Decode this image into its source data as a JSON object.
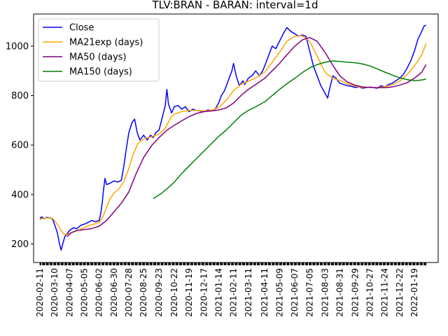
{
  "chart_data": {
    "type": "line",
    "title": "TLV:BRAN - BARAN: interval=1d",
    "xlabel": "",
    "ylabel": "",
    "ylim": [
      125,
      1130
    ],
    "yticks": [
      200,
      400,
      600,
      800,
      1000
    ],
    "xlim": [
      "2020-01-30",
      "2022-03-05"
    ],
    "xtick_labels": [
      "2020-02-11",
      "2020-03-10",
      "2020-04-07",
      "2020-05-05",
      "2020-06-02",
      "2020-06-30",
      "2020-07-28",
      "2020-08-25",
      "2020-09-23",
      "2020-10-22",
      "2020-11-19",
      "2020-12-17",
      "2021-01-14",
      "2021-02-11",
      "2021-03-11",
      "2021-04-11",
      "2021-05-09",
      "2021-06-07",
      "2021-07-05",
      "2021-08-03",
      "2021-08-31",
      "2021-09-29",
      "2021-10-27",
      "2021-11-24",
      "2021-12-22",
      "2022-01-19"
    ],
    "legend_position": "upper-left",
    "grid": false,
    "series": [
      {
        "name": "Close",
        "color": "#0000ff",
        "points": [
          [
            "2020-02-11",
            300
          ],
          [
            "2020-02-14",
            310
          ],
          [
            "2020-02-19",
            302
          ],
          [
            "2020-02-24",
            308
          ],
          [
            "2020-03-01",
            305
          ],
          [
            "2020-03-06",
            300
          ],
          [
            "2020-03-11",
            270
          ],
          [
            "2020-03-15",
            245
          ],
          [
            "2020-03-19",
            200
          ],
          [
            "2020-03-22",
            175
          ],
          [
            "2020-03-25",
            200
          ],
          [
            "2020-03-29",
            230
          ],
          [
            "2020-04-02",
            240
          ],
          [
            "2020-04-07",
            255
          ],
          [
            "2020-04-14",
            265
          ],
          [
            "2020-04-21",
            262
          ],
          [
            "2020-04-28",
            275
          ],
          [
            "2020-05-05",
            280
          ],
          [
            "2020-05-12",
            287
          ],
          [
            "2020-05-19",
            295
          ],
          [
            "2020-05-26",
            290
          ],
          [
            "2020-06-02",
            295
          ],
          [
            "2020-06-05",
            325
          ],
          [
            "2020-06-08",
            370
          ],
          [
            "2020-06-10",
            415
          ],
          [
            "2020-06-13",
            465
          ],
          [
            "2020-06-16",
            440
          ],
          [
            "2020-06-22",
            445
          ],
          [
            "2020-06-30",
            455
          ],
          [
            "2020-07-07",
            450
          ],
          [
            "2020-07-14",
            458
          ],
          [
            "2020-07-19",
            520
          ],
          [
            "2020-07-23",
            580
          ],
          [
            "2020-07-28",
            650
          ],
          [
            "2020-08-03",
            690
          ],
          [
            "2020-08-08",
            705
          ],
          [
            "2020-08-13",
            650
          ],
          [
            "2020-08-18",
            620
          ],
          [
            "2020-08-25",
            640
          ],
          [
            "2020-09-01",
            620
          ],
          [
            "2020-09-07",
            640
          ],
          [
            "2020-09-12",
            630
          ],
          [
            "2020-09-17",
            650
          ],
          [
            "2020-09-23",
            660
          ],
          [
            "2020-09-28",
            700
          ],
          [
            "2020-10-05",
            760
          ],
          [
            "2020-10-08",
            825
          ],
          [
            "2020-10-11",
            765
          ],
          [
            "2020-10-17",
            730
          ],
          [
            "2020-10-22",
            755
          ],
          [
            "2020-10-29",
            760
          ],
          [
            "2020-11-05",
            745
          ],
          [
            "2020-11-12",
            755
          ],
          [
            "2020-11-19",
            735
          ],
          [
            "2020-11-26",
            745
          ],
          [
            "2020-12-03",
            740
          ],
          [
            "2020-12-10",
            738
          ],
          [
            "2020-12-17",
            735
          ],
          [
            "2020-12-24",
            742
          ],
          [
            "2020-12-31",
            740
          ],
          [
            "2021-01-07",
            745
          ],
          [
            "2021-01-14",
            770
          ],
          [
            "2021-01-19",
            800
          ],
          [
            "2021-01-25",
            820
          ],
          [
            "2021-02-01",
            860
          ],
          [
            "2021-02-08",
            900
          ],
          [
            "2021-02-11",
            930
          ],
          [
            "2021-02-16",
            880
          ],
          [
            "2021-02-22",
            840
          ],
          [
            "2021-03-01",
            860
          ],
          [
            "2021-03-04",
            845
          ],
          [
            "2021-03-11",
            870
          ],
          [
            "2021-03-18",
            880
          ],
          [
            "2021-03-25",
            900
          ],
          [
            "2021-04-01",
            880
          ],
          [
            "2021-04-07",
            900
          ],
          [
            "2021-04-11",
            920
          ],
          [
            "2021-04-18",
            960
          ],
          [
            "2021-04-25",
            1000
          ],
          [
            "2021-05-02",
            990
          ],
          [
            "2021-05-09",
            1020
          ],
          [
            "2021-05-16",
            1050
          ],
          [
            "2021-05-23",
            1075
          ],
          [
            "2021-05-30",
            1060
          ],
          [
            "2021-06-07",
            1050
          ],
          [
            "2021-06-14",
            1040
          ],
          [
            "2021-06-21",
            1045
          ],
          [
            "2021-06-28",
            1040
          ],
          [
            "2021-07-05",
            980
          ],
          [
            "2021-07-12",
            920
          ],
          [
            "2021-07-19",
            880
          ],
          [
            "2021-07-26",
            840
          ],
          [
            "2021-08-03",
            810
          ],
          [
            "2021-08-08",
            790
          ],
          [
            "2021-08-12",
            830
          ],
          [
            "2021-08-18",
            880
          ],
          [
            "2021-08-24",
            870
          ],
          [
            "2021-08-31",
            850
          ],
          [
            "2021-09-07",
            845
          ],
          [
            "2021-09-14",
            840
          ],
          [
            "2021-09-21",
            838
          ],
          [
            "2021-09-29",
            833
          ],
          [
            "2021-10-06",
            835
          ],
          [
            "2021-10-13",
            830
          ],
          [
            "2021-10-20",
            832
          ],
          [
            "2021-10-27",
            835
          ],
          [
            "2021-11-03",
            832
          ],
          [
            "2021-11-10",
            830
          ],
          [
            "2021-11-17",
            840
          ],
          [
            "2021-11-24",
            835
          ],
          [
            "2021-12-01",
            845
          ],
          [
            "2021-12-08",
            850
          ],
          [
            "2021-12-15",
            860
          ],
          [
            "2021-12-22",
            870
          ],
          [
            "2021-12-29",
            885
          ],
          [
            "2022-01-05",
            910
          ],
          [
            "2022-01-12",
            940
          ],
          [
            "2022-01-19",
            980
          ],
          [
            "2022-01-26",
            1030
          ],
          [
            "2022-02-02",
            1060
          ],
          [
            "2022-02-06",
            1080
          ],
          [
            "2022-02-10",
            1085
          ]
        ]
      },
      {
        "name": "MA21exp (days)",
        "color": "#ffa500",
        "points": [
          [
            "2020-02-11",
            300
          ],
          [
            "2020-02-25",
            306
          ],
          [
            "2020-03-06",
            303
          ],
          [
            "2020-03-13",
            285
          ],
          [
            "2020-03-20",
            262
          ],
          [
            "2020-03-27",
            240
          ],
          [
            "2020-04-03",
            238
          ],
          [
            "2020-04-10",
            245
          ],
          [
            "2020-04-20",
            252
          ],
          [
            "2020-05-01",
            262
          ],
          [
            "2020-05-12",
            273
          ],
          [
            "2020-05-26",
            282
          ],
          [
            "2020-06-02",
            288
          ],
          [
            "2020-06-09",
            310
          ],
          [
            "2020-06-16",
            350
          ],
          [
            "2020-06-23",
            385
          ],
          [
            "2020-06-30",
            405
          ],
          [
            "2020-07-10",
            425
          ],
          [
            "2020-07-19",
            455
          ],
          [
            "2020-07-28",
            505
          ],
          [
            "2020-08-05",
            560
          ],
          [
            "2020-08-14",
            605
          ],
          [
            "2020-08-25",
            625
          ],
          [
            "2020-09-07",
            632
          ],
          [
            "2020-09-23",
            645
          ],
          [
            "2020-10-05",
            668
          ],
          [
            "2020-10-15",
            710
          ],
          [
            "2020-10-22",
            725
          ],
          [
            "2020-11-05",
            735
          ],
          [
            "2020-11-19",
            740
          ],
          [
            "2020-12-03",
            740
          ],
          [
            "2020-12-17",
            738
          ],
          [
            "2020-12-31",
            740
          ],
          [
            "2021-01-14",
            752
          ],
          [
            "2021-01-28",
            780
          ],
          [
            "2021-02-11",
            820
          ],
          [
            "2021-02-25",
            845
          ],
          [
            "2021-03-11",
            858
          ],
          [
            "2021-03-25",
            872
          ],
          [
            "2021-04-11",
            895
          ],
          [
            "2021-04-25",
            935
          ],
          [
            "2021-05-09",
            975
          ],
          [
            "2021-05-23",
            1020
          ],
          [
            "2021-06-07",
            1040
          ],
          [
            "2021-06-21",
            1042
          ],
          [
            "2021-07-05",
            1020
          ],
          [
            "2021-07-19",
            960
          ],
          [
            "2021-08-03",
            895
          ],
          [
            "2021-08-17",
            870
          ],
          [
            "2021-08-31",
            862
          ],
          [
            "2021-09-14",
            848
          ],
          [
            "2021-09-29",
            838
          ],
          [
            "2021-10-13",
            833
          ],
          [
            "2021-10-27",
            833
          ],
          [
            "2021-11-10",
            832
          ],
          [
            "2021-11-24",
            836
          ],
          [
            "2021-12-08",
            844
          ],
          [
            "2021-12-22",
            858
          ],
          [
            "2022-01-05",
            885
          ],
          [
            "2022-01-19",
            920
          ],
          [
            "2022-02-02",
            965
          ],
          [
            "2022-02-10",
            1010
          ]
        ]
      },
      {
        "name": "MA50 (days)",
        "color": "#800080",
        "points": [
          [
            "2020-04-02",
            230
          ],
          [
            "2020-04-10",
            245
          ],
          [
            "2020-04-21",
            255
          ],
          [
            "2020-05-05",
            258
          ],
          [
            "2020-05-19",
            262
          ],
          [
            "2020-06-02",
            272
          ],
          [
            "2020-06-16",
            295
          ],
          [
            "2020-06-30",
            330
          ],
          [
            "2020-07-14",
            365
          ],
          [
            "2020-07-28",
            410
          ],
          [
            "2020-08-10",
            480
          ],
          [
            "2020-08-25",
            550
          ],
          [
            "2020-09-10",
            600
          ],
          [
            "2020-09-23",
            630
          ],
          [
            "2020-10-08",
            660
          ],
          [
            "2020-10-22",
            680
          ],
          [
            "2020-11-05",
            698
          ],
          [
            "2020-11-19",
            715
          ],
          [
            "2020-12-03",
            728
          ],
          [
            "2020-12-17",
            735
          ],
          [
            "2020-12-31",
            738
          ],
          [
            "2021-01-14",
            742
          ],
          [
            "2021-01-28",
            750
          ],
          [
            "2021-02-11",
            770
          ],
          [
            "2021-02-25",
            800
          ],
          [
            "2021-03-11",
            825
          ],
          [
            "2021-03-25",
            845
          ],
          [
            "2021-04-11",
            870
          ],
          [
            "2021-04-25",
            900
          ],
          [
            "2021-05-09",
            930
          ],
          [
            "2021-05-23",
            965
          ],
          [
            "2021-06-07",
            1000
          ],
          [
            "2021-06-21",
            1025
          ],
          [
            "2021-07-05",
            1035
          ],
          [
            "2021-07-19",
            1020
          ],
          [
            "2021-08-03",
            975
          ],
          [
            "2021-08-17",
            925
          ],
          [
            "2021-08-31",
            880
          ],
          [
            "2021-09-14",
            855
          ],
          [
            "2021-09-29",
            842
          ],
          [
            "2021-10-13",
            835
          ],
          [
            "2021-10-27",
            833
          ],
          [
            "2021-11-10",
            832
          ],
          [
            "2021-11-24",
            832
          ],
          [
            "2021-12-08",
            835
          ],
          [
            "2021-12-22",
            842
          ],
          [
            "2022-01-05",
            852
          ],
          [
            "2022-01-19",
            870
          ],
          [
            "2022-02-02",
            895
          ],
          [
            "2022-02-10",
            925
          ]
        ]
      },
      {
        "name": "MA150 (days)",
        "color": "#008000",
        "points": [
          [
            "2020-09-12",
            383
          ],
          [
            "2020-09-28",
            405
          ],
          [
            "2020-10-12",
            430
          ],
          [
            "2020-10-22",
            450
          ],
          [
            "2020-11-05",
            485
          ],
          [
            "2020-11-19",
            515
          ],
          [
            "2020-12-03",
            545
          ],
          [
            "2020-12-17",
            575
          ],
          [
            "2020-12-31",
            605
          ],
          [
            "2021-01-14",
            635
          ],
          [
            "2021-01-28",
            660
          ],
          [
            "2021-02-11",
            690
          ],
          [
            "2021-02-25",
            720
          ],
          [
            "2021-03-11",
            740
          ],
          [
            "2021-03-25",
            755
          ],
          [
            "2021-04-11",
            775
          ],
          [
            "2021-04-25",
            800
          ],
          [
            "2021-05-09",
            825
          ],
          [
            "2021-05-23",
            848
          ],
          [
            "2021-06-07",
            870
          ],
          [
            "2021-06-21",
            893
          ],
          [
            "2021-07-05",
            912
          ],
          [
            "2021-07-19",
            925
          ],
          [
            "2021-08-03",
            935
          ],
          [
            "2021-08-17",
            940
          ],
          [
            "2021-08-31",
            938
          ],
          [
            "2021-09-14",
            935
          ],
          [
            "2021-09-29",
            933
          ],
          [
            "2021-10-13",
            928
          ],
          [
            "2021-10-27",
            920
          ],
          [
            "2021-11-10",
            908
          ],
          [
            "2021-11-24",
            895
          ],
          [
            "2021-12-08",
            883
          ],
          [
            "2021-12-22",
            872
          ],
          [
            "2022-01-05",
            865
          ],
          [
            "2022-01-19",
            860
          ],
          [
            "2022-02-02",
            863
          ],
          [
            "2022-02-10",
            867
          ]
        ]
      }
    ]
  }
}
